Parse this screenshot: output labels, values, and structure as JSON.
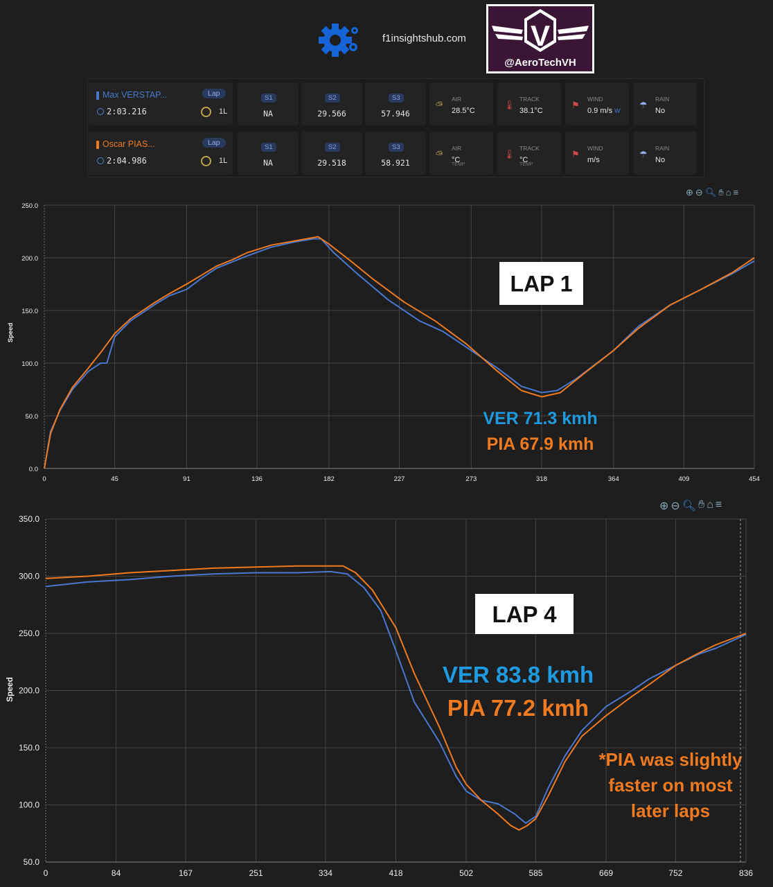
{
  "header": {
    "site": "f1insightshub.com",
    "logo_handle": "@AeroTechVH",
    "logo_letter": "V"
  },
  "drivers": [
    {
      "name": "Max VERSTAP...",
      "color": "#4a78d0",
      "time": "2:03.216",
      "lap_label": "Lap",
      "lap_count": "1L",
      "sectors": [
        {
          "label": "S1",
          "value": "NA"
        },
        {
          "label": "S2",
          "value": "29.566"
        },
        {
          "label": "S3",
          "value": "57.946"
        }
      ],
      "weather": [
        {
          "label": "AIR",
          "value": "28.5°C",
          "sub": "",
          "icon": "sun-cloud-icon"
        },
        {
          "label": "TRACK",
          "value": "38.1°C",
          "sub": "",
          "icon": "thermometer-icon"
        },
        {
          "label": "WIND",
          "value": "0.9 m/s",
          "sub": "",
          "dir": "W",
          "icon": "windsock-icon"
        },
        {
          "label": "RAIN",
          "value": "No",
          "sub": "",
          "icon": "rain-cloud-icon"
        }
      ]
    },
    {
      "name": "Oscar PIAS...",
      "color": "#f07a20",
      "time": "2:04.986",
      "lap_label": "Lap",
      "lap_count": "1L",
      "sectors": [
        {
          "label": "S1",
          "value": "NA"
        },
        {
          "label": "S2",
          "value": "29.518"
        },
        {
          "label": "S3",
          "value": "58.921"
        }
      ],
      "weather": [
        {
          "label": "AIR",
          "value": "°C",
          "sub": "TEMP",
          "icon": "sun-cloud-icon"
        },
        {
          "label": "TRACK",
          "value": "°C",
          "sub": "TEMP",
          "icon": "thermometer-icon"
        },
        {
          "label": "WIND",
          "value": "m/s",
          "sub": "",
          "dir": "",
          "icon": "windsock-icon"
        },
        {
          "label": "RAIN",
          "value": "No",
          "sub": "",
          "icon": "rain-cloud-icon"
        }
      ]
    }
  ],
  "chart_data": [
    {
      "type": "line",
      "ylabel": "Speed",
      "xlabel": "",
      "ylim": [
        0,
        250
      ],
      "xlim": [
        0,
        454
      ],
      "yticks": [
        "0.0",
        "50.0",
        "100.0",
        "150.0",
        "200.0",
        "250.0"
      ],
      "xticks": [
        "0",
        "45",
        "91",
        "136",
        "182",
        "227",
        "273",
        "318",
        "364",
        "409",
        "454"
      ],
      "grid": true,
      "annotation": "LAP 1",
      "labels": [
        {
          "text": "VER 71.3 kmh",
          "color": "#1e9be0"
        },
        {
          "text": "PIA 67.9 kmh",
          "color": "#f07a20"
        }
      ],
      "series": [
        {
          "color": "#4a78d0",
          "points": [
            [
              0,
              0
            ],
            [
              4,
              35
            ],
            [
              10,
              55
            ],
            [
              18,
              75
            ],
            [
              28,
              92
            ],
            [
              36,
              100
            ],
            [
              40,
              100
            ],
            [
              45,
              125
            ],
            [
              55,
              140
            ],
            [
              70,
              155
            ],
            [
              80,
              164
            ],
            [
              91,
              170
            ],
            [
              100,
              180
            ],
            [
              110,
              190
            ],
            [
              120,
              196
            ],
            [
              130,
              202
            ],
            [
              145,
              210
            ],
            [
              160,
              215
            ],
            [
              172,
              218
            ],
            [
              177,
              218
            ],
            [
              185,
              205
            ],
            [
              200,
              185
            ],
            [
              220,
              160
            ],
            [
              240,
              140
            ],
            [
              255,
              130
            ],
            [
              273,
              112
            ],
            [
              290,
              95
            ],
            [
              305,
              78
            ],
            [
              318,
              72
            ],
            [
              328,
              74
            ],
            [
              340,
              85
            ],
            [
              364,
              112
            ],
            [
              380,
              135
            ],
            [
              400,
              155
            ],
            [
              420,
              170
            ],
            [
              440,
              185
            ],
            [
              454,
              197
            ]
          ]
        },
        {
          "color": "#f07a20",
          "points": [
            [
              0,
              0
            ],
            [
              4,
              33
            ],
            [
              10,
              56
            ],
            [
              18,
              77
            ],
            [
              28,
              95
            ],
            [
              36,
              110
            ],
            [
              45,
              128
            ],
            [
              55,
              142
            ],
            [
              70,
              157
            ],
            [
              80,
              166
            ],
            [
              91,
              175
            ],
            [
              100,
              183
            ],
            [
              110,
              192
            ],
            [
              120,
              198
            ],
            [
              130,
              205
            ],
            [
              145,
              212
            ],
            [
              160,
              216
            ],
            [
              175,
              220
            ],
            [
              182,
              213
            ],
            [
              195,
              198
            ],
            [
              210,
              180
            ],
            [
              230,
              158
            ],
            [
              250,
              140
            ],
            [
              270,
              118
            ],
            [
              290,
              92
            ],
            [
              305,
              74
            ],
            [
              318,
              68
            ],
            [
              330,
              72
            ],
            [
              345,
              90
            ],
            [
              364,
              112
            ],
            [
              380,
              133
            ],
            [
              400,
              155
            ],
            [
              420,
              170
            ],
            [
              440,
              186
            ],
            [
              454,
              200
            ]
          ]
        }
      ]
    },
    {
      "type": "line",
      "ylabel": "Speed",
      "xlabel": "",
      "ylim": [
        50,
        350
      ],
      "xlim": [
        0,
        836
      ],
      "yticks": [
        "50.0",
        "100.0",
        "150.0",
        "200.0",
        "250.0",
        "300.0",
        "350.0"
      ],
      "xticks": [
        "0",
        "84",
        "167",
        "251",
        "334",
        "418",
        "502",
        "585",
        "669",
        "752",
        "836"
      ],
      "grid": true,
      "annotation": "LAP 4",
      "labels": [
        {
          "text": "VER 83.8 kmh",
          "color": "#1e9be0"
        },
        {
          "text": "PIA 77.2 kmh",
          "color": "#f07a20"
        }
      ],
      "note": [
        "*PIA was slightly",
        "faster on most",
        "later laps"
      ],
      "series": [
        {
          "color": "#4a78d0",
          "points": [
            [
              0,
              291
            ],
            [
              50,
              295
            ],
            [
              100,
              297
            ],
            [
              150,
              300
            ],
            [
              200,
              302
            ],
            [
              251,
              303
            ],
            [
              300,
              303
            ],
            [
              340,
              304
            ],
            [
              360,
              302
            ],
            [
              380,
              290
            ],
            [
              400,
              270
            ],
            [
              418,
              235
            ],
            [
              440,
              190
            ],
            [
              470,
              155
            ],
            [
              490,
              125
            ],
            [
              502,
              112
            ],
            [
              520,
              104
            ],
            [
              540,
              101
            ],
            [
              560,
              92
            ],
            [
              573,
              84
            ],
            [
              585,
              90
            ],
            [
              600,
              115
            ],
            [
              620,
              143
            ],
            [
              640,
              165
            ],
            [
              669,
              186
            ],
            [
              700,
              200
            ],
            [
              720,
              210
            ],
            [
              752,
              222
            ],
            [
              780,
              232
            ],
            [
              800,
              237
            ],
            [
              836,
              249
            ]
          ]
        },
        {
          "color": "#f07a20",
          "points": [
            [
              0,
              298
            ],
            [
              50,
              300
            ],
            [
              100,
              303
            ],
            [
              150,
              305
            ],
            [
              200,
              307
            ],
            [
              251,
              308
            ],
            [
              300,
              309
            ],
            [
              355,
              309
            ],
            [
              370,
              303
            ],
            [
              390,
              288
            ],
            [
              418,
              255
            ],
            [
              440,
              215
            ],
            [
              470,
              168
            ],
            [
              490,
              133
            ],
            [
              502,
              118
            ],
            [
              520,
              104
            ],
            [
              540,
              92
            ],
            [
              555,
              82
            ],
            [
              565,
              78
            ],
            [
              575,
              82
            ],
            [
              585,
              88
            ],
            [
              600,
              108
            ],
            [
              620,
              138
            ],
            [
              640,
              160
            ],
            [
              669,
              178
            ],
            [
              700,
              195
            ],
            [
              720,
              205
            ],
            [
              752,
              222
            ],
            [
              780,
              233
            ],
            [
              800,
              240
            ],
            [
              836,
              250
            ]
          ]
        }
      ]
    }
  ]
}
